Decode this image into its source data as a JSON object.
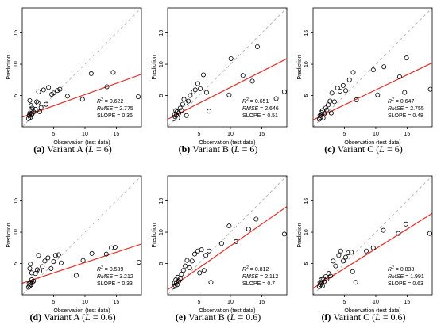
{
  "chart_data": [
    {
      "type": "scatter",
      "caption": {
        "letter": "(a)",
        "text": "Variant A (",
        "param": "L",
        "eq": " = 6)"
      },
      "xlabel": "Observation (test data)",
      "ylabel": "Prediction",
      "xlim": [
        0,
        19
      ],
      "ylim": [
        0,
        19
      ],
      "xticks": [
        5,
        10,
        15
      ],
      "yticks": [
        5,
        10,
        15
      ],
      "stats": {
        "r2": "0.622",
        "rmse": "2.775",
        "slope": "0.36"
      },
      "fit": {
        "intercept": 1.55,
        "slope": 0.36
      },
      "points": [
        [
          1.0,
          1.3
        ],
        [
          1.1,
          1.8
        ],
        [
          1.2,
          2.2
        ],
        [
          1.3,
          1.5
        ],
        [
          1.4,
          2.6
        ],
        [
          1.5,
          1.9
        ],
        [
          1.6,
          2.2
        ],
        [
          1.8,
          2.4
        ],
        [
          1.2,
          4.2
        ],
        [
          1.4,
          3.4
        ],
        [
          1.6,
          3.0
        ],
        [
          2.3,
          4.0
        ],
        [
          2.5,
          3.8
        ],
        [
          2.1,
          2.8
        ],
        [
          2.6,
          5.6
        ],
        [
          3.4,
          5.9
        ],
        [
          3.8,
          3.6
        ],
        [
          4.2,
          6.3
        ],
        [
          4.7,
          5.2
        ],
        [
          5.0,
          5.4
        ],
        [
          5.6,
          5.8
        ],
        [
          6.0,
          6.0
        ],
        [
          7.2,
          4.9
        ],
        [
          9.6,
          4.4
        ],
        [
          11.0,
          8.5
        ],
        [
          13.5,
          6.4
        ],
        [
          14.5,
          8.7
        ],
        [
          18.5,
          4.8
        ],
        [
          2.8,
          2.4
        ],
        [
          3.0,
          3.1
        ]
      ]
    },
    {
      "type": "scatter",
      "caption": {
        "letter": "(b)",
        "text": "Variant B (",
        "param": "L",
        "eq": " = 6)"
      },
      "xlabel": "Observation (test data)",
      "ylabel": "Prediction",
      "xlim": [
        0,
        19
      ],
      "ylim": [
        0,
        19
      ],
      "xticks": [
        5,
        10,
        15
      ],
      "yticks": [
        5,
        10,
        15
      ],
      "stats": {
        "r2": "0.651",
        "rmse": "2.646",
        "slope": "0.51"
      },
      "fit": {
        "intercept": 1.2,
        "slope": 0.51
      },
      "points": [
        [
          1.0,
          1.3
        ],
        [
          1.1,
          2.0
        ],
        [
          1.2,
          1.6
        ],
        [
          1.3,
          2.6
        ],
        [
          1.4,
          1.9
        ],
        [
          1.5,
          2.4
        ],
        [
          1.6,
          1.4
        ],
        [
          1.8,
          2.2
        ],
        [
          2.0,
          3.0
        ],
        [
          2.2,
          2.6
        ],
        [
          2.4,
          3.6
        ],
        [
          2.6,
          4.4
        ],
        [
          2.9,
          3.8
        ],
        [
          3.3,
          4.1
        ],
        [
          3.6,
          5.0
        ],
        [
          4.1,
          5.6
        ],
        [
          4.4,
          5.9
        ],
        [
          4.8,
          6.9
        ],
        [
          5.2,
          6.1
        ],
        [
          5.7,
          8.3
        ],
        [
          6.2,
          5.5
        ],
        [
          6.6,
          2.5
        ],
        [
          9.8,
          5.1
        ],
        [
          10.1,
          10.9
        ],
        [
          12.0,
          8.2
        ],
        [
          13.5,
          7.3
        ],
        [
          14.3,
          12.8
        ],
        [
          17.3,
          4.5
        ],
        [
          18.6,
          5.6
        ],
        [
          3.0,
          1.8
        ]
      ]
    },
    {
      "type": "scatter",
      "caption": {
        "letter": "(c)",
        "text": "Variant C (",
        "param": "L",
        "eq": " = 6)"
      },
      "xlabel": "Observation (test data)",
      "ylabel": "Prediction",
      "xlim": [
        0,
        19
      ],
      "ylim": [
        0,
        19
      ],
      "xticks": [
        5,
        10,
        15
      ],
      "yticks": [
        5,
        10,
        15
      ],
      "stats": {
        "r2": "0.647",
        "rmse": "2.755",
        "slope": "0.48"
      },
      "fit": {
        "intercept": 1.1,
        "slope": 0.48
      },
      "points": [
        [
          1.0,
          1.2
        ],
        [
          1.1,
          1.8
        ],
        [
          1.2,
          1.5
        ],
        [
          1.3,
          2.3
        ],
        [
          1.4,
          2.0
        ],
        [
          1.5,
          2.6
        ],
        [
          1.6,
          1.4
        ],
        [
          1.8,
          2.1
        ],
        [
          2.0,
          3.0
        ],
        [
          2.2,
          2.7
        ],
        [
          2.4,
          3.5
        ],
        [
          2.7,
          4.1
        ],
        [
          3.0,
          5.4
        ],
        [
          3.4,
          4.0
        ],
        [
          3.9,
          6.2
        ],
        [
          4.3,
          5.7
        ],
        [
          4.8,
          6.6
        ],
        [
          5.2,
          5.8
        ],
        [
          5.8,
          7.5
        ],
        [
          6.4,
          8.7
        ],
        [
          6.9,
          4.3
        ],
        [
          9.6,
          9.1
        ],
        [
          10.3,
          5.1
        ],
        [
          11.3,
          9.6
        ],
        [
          13.8,
          8.0
        ],
        [
          14.6,
          5.5
        ],
        [
          14.9,
          11.0
        ],
        [
          18.7,
          6.0
        ],
        [
          2.9,
          2.2
        ]
      ]
    },
    {
      "type": "scatter",
      "caption": {
        "letter": "(d)",
        "text": "Variant A (",
        "param": "L",
        "eq": " = 0.6)"
      },
      "xlabel": "Observation (test data)",
      "ylabel": "Prediction",
      "xlim": [
        0,
        19
      ],
      "ylim": [
        0,
        19
      ],
      "xticks": [
        5,
        10,
        15
      ],
      "yticks": [
        5,
        10,
        15
      ],
      "stats": {
        "r2": "0.539",
        "rmse": "3.212",
        "slope": "0.33"
      },
      "fit": {
        "intercept": 1.85,
        "slope": 0.33
      },
      "points": [
        [
          1.0,
          1.2
        ],
        [
          1.1,
          1.8
        ],
        [
          1.2,
          1.4
        ],
        [
          1.3,
          2.0
        ],
        [
          1.4,
          1.6
        ],
        [
          1.5,
          2.4
        ],
        [
          1.6,
          1.9
        ],
        [
          1.8,
          2.2
        ],
        [
          1.2,
          4.2
        ],
        [
          1.3,
          4.9
        ],
        [
          1.5,
          3.5
        ],
        [
          2.1,
          3.4
        ],
        [
          2.4,
          4.0
        ],
        [
          2.6,
          6.3
        ],
        [
          2.8,
          3.8
        ],
        [
          3.2,
          4.5
        ],
        [
          3.6,
          5.4
        ],
        [
          4.1,
          5.9
        ],
        [
          4.6,
          4.2
        ],
        [
          5.0,
          5.3
        ],
        [
          5.3,
          6.3
        ],
        [
          5.8,
          6.4
        ],
        [
          6.2,
          5.1
        ],
        [
          8.6,
          3.1
        ],
        [
          9.7,
          5.5
        ],
        [
          11.1,
          6.6
        ],
        [
          13.4,
          6.5
        ],
        [
          14.2,
          7.5
        ],
        [
          14.8,
          7.6
        ],
        [
          18.6,
          5.2
        ]
      ]
    },
    {
      "type": "scatter",
      "caption": {
        "letter": "(e)",
        "text": "Variant B (",
        "param": "L",
        "eq": " = 0.6)"
      },
      "xlabel": "Observation (test data)",
      "ylabel": "Prediction",
      "xlim": [
        0,
        19
      ],
      "ylim": [
        0,
        19
      ],
      "xticks": [
        5,
        10,
        15
      ],
      "yticks": [
        5,
        10,
        15
      ],
      "stats": {
        "r2": "0.812",
        "rmse": "2.112",
        "slope": "0.7"
      },
      "fit": {
        "intercept": 0.8,
        "slope": 0.7
      },
      "points": [
        [
          1.0,
          1.3
        ],
        [
          1.1,
          1.9
        ],
        [
          1.2,
          1.5
        ],
        [
          1.3,
          2.4
        ],
        [
          1.4,
          2.0
        ],
        [
          1.5,
          1.6
        ],
        [
          1.6,
          2.8
        ],
        [
          1.8,
          2.2
        ],
        [
          2.0,
          2.6
        ],
        [
          2.2,
          3.3
        ],
        [
          2.5,
          3.9
        ],
        [
          2.8,
          4.6
        ],
        [
          3.1,
          5.5
        ],
        [
          3.5,
          4.3
        ],
        [
          3.9,
          5.4
        ],
        [
          4.3,
          6.5
        ],
        [
          4.8,
          7.0
        ],
        [
          5.1,
          3.5
        ],
        [
          5.4,
          7.2
        ],
        [
          5.8,
          3.9
        ],
        [
          6.1,
          6.3
        ],
        [
          6.6,
          7.0
        ],
        [
          6.9,
          2.0
        ],
        [
          8.6,
          8.2
        ],
        [
          9.8,
          11.0
        ],
        [
          10.9,
          8.5
        ],
        [
          12.9,
          10.5
        ],
        [
          14.1,
          12.1
        ],
        [
          18.6,
          9.7
        ]
      ]
    },
    {
      "type": "scatter",
      "caption": {
        "letter": "(f)",
        "text": "Variant C (",
        "param": "L",
        "eq": " = 0.6)"
      },
      "xlabel": "Observation (test data)",
      "ylabel": "Prediction",
      "xlim": [
        0,
        19
      ],
      "ylim": [
        0,
        19
      ],
      "xticks": [
        5,
        10,
        15
      ],
      "yticks": [
        5,
        10,
        15
      ],
      "stats": {
        "r2": "0.838",
        "rmse": "1.991",
        "slope": "0.63"
      },
      "fit": {
        "intercept": 1.05,
        "slope": 0.63
      },
      "points": [
        [
          1.0,
          1.3
        ],
        [
          1.1,
          2.0
        ],
        [
          1.2,
          1.6
        ],
        [
          1.3,
          2.4
        ],
        [
          1.4,
          1.9
        ],
        [
          1.5,
          1.4
        ],
        [
          1.6,
          2.6
        ],
        [
          1.8,
          2.1
        ],
        [
          2.0,
          2.9
        ],
        [
          2.2,
          2.5
        ],
        [
          2.5,
          3.4
        ],
        [
          2.8,
          3.0
        ],
        [
          3.2,
          5.4
        ],
        [
          3.6,
          4.6
        ],
        [
          4.1,
          6.3
        ],
        [
          4.4,
          7.0
        ],
        [
          4.8,
          5.4
        ],
        [
          5.2,
          6.0
        ],
        [
          5.6,
          6.7
        ],
        [
          6.1,
          6.8
        ],
        [
          6.3,
          3.7
        ],
        [
          6.8,
          2.0
        ],
        [
          8.5,
          7.0
        ],
        [
          9.6,
          7.5
        ],
        [
          11.2,
          10.3
        ],
        [
          13.6,
          9.8
        ],
        [
          14.8,
          11.3
        ],
        [
          18.6,
          9.8
        ]
      ]
    }
  ]
}
